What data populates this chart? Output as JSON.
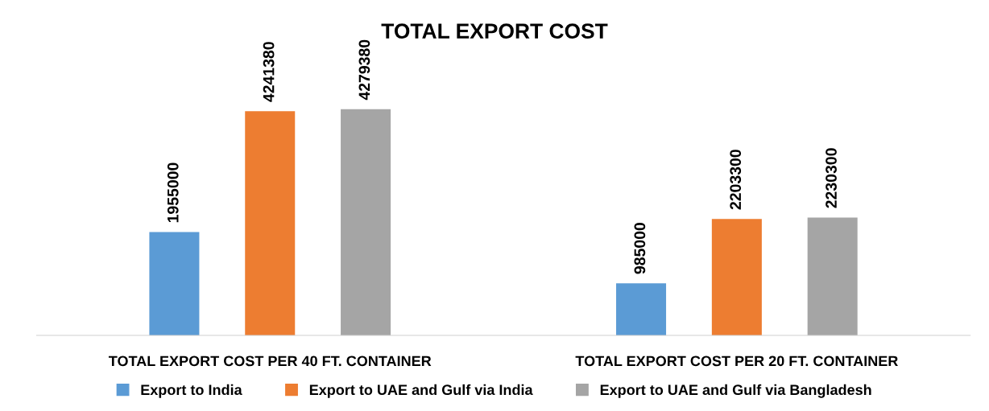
{
  "chart_data": {
    "type": "bar",
    "title": "TOTAL EXPORT COST",
    "categories": [
      "TOTAL EXPORT COST PER 40 FT. CONTAINER",
      "TOTAL EXPORT COST PER 20 FT. CONTAINER"
    ],
    "series": [
      {
        "name": "Export to India",
        "color": "#5b9bd5",
        "values": [
          1955000,
          985000
        ]
      },
      {
        "name": "Export to UAE and Gulf via India",
        "color": "#ed7d31",
        "values": [
          4241380,
          2203300
        ]
      },
      {
        "name": "Export to UAE and Gulf via Bangladesh",
        "color": "#a5a5a5",
        "values": [
          4279380,
          2230300
        ]
      }
    ],
    "tick_labels": "x",
    "data_labels": true,
    "grid": false,
    "legend": "bottom"
  }
}
